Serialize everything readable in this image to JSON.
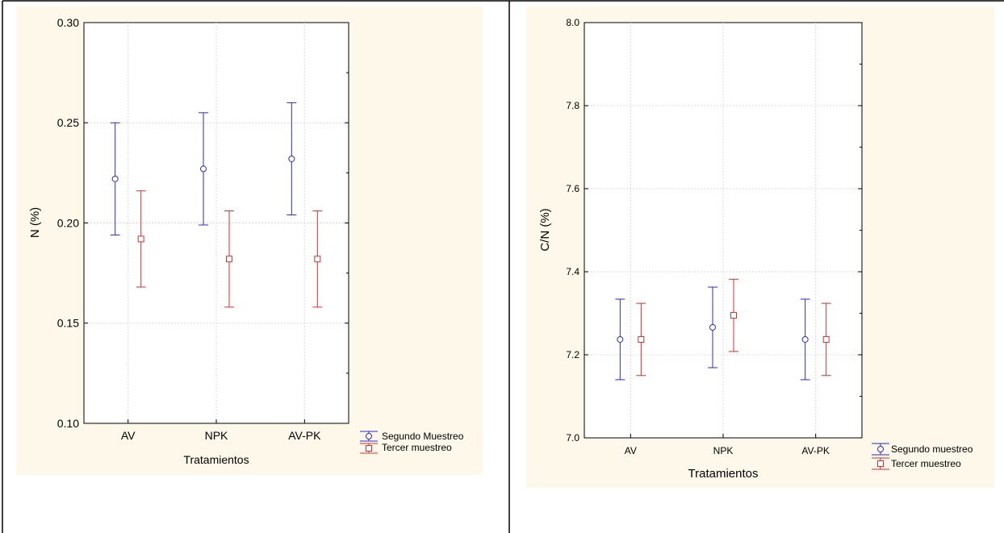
{
  "chart_data": [
    {
      "type": "scatter",
      "subtype": "error-bar",
      "xlabel": "Tratamientos",
      "ylabel": "N (%)",
      "categories": [
        "AV",
        "NPK",
        "AV-PK"
      ],
      "ylim": [
        0.1,
        0.3
      ],
      "yticks": [
        "0.10",
        "0.15",
        "0.20",
        "0.25",
        "0.30"
      ],
      "ytick_values": [
        0.1,
        0.15,
        0.2,
        0.25,
        0.3
      ],
      "grid": true,
      "legend_position": "bottom-right outside",
      "background": "#fdf8e9",
      "series": [
        {
          "name": "Segundo Muestreo",
          "color": "#2b2bd0",
          "marker": "circle",
          "mean": [
            0.222,
            0.227,
            0.232
          ],
          "lower": [
            0.194,
            0.199,
            0.204
          ],
          "upper": [
            0.25,
            0.255,
            0.26
          ]
        },
        {
          "name": "Tercer muestreo",
          "color": "#d63030",
          "marker": "square",
          "mean": [
            0.192,
            0.182,
            0.182
          ],
          "lower": [
            0.168,
            0.158,
            0.158
          ],
          "upper": [
            0.216,
            0.206,
            0.206
          ]
        }
      ]
    },
    {
      "type": "scatter",
      "subtype": "error-bar",
      "xlabel": "Tratamientos",
      "ylabel": "C/N (%)",
      "categories": [
        "AV",
        "NPK",
        "AV-PK"
      ],
      "ylim": [
        7.0,
        8.0
      ],
      "yticks": [
        "7.0",
        "7.2",
        "7.4",
        "7.6",
        "7.8",
        "8.0"
      ],
      "ytick_values": [
        7.0,
        7.2,
        7.4,
        7.6,
        7.8,
        8.0
      ],
      "grid": true,
      "legend_position": "bottom-right outside",
      "background": "#fdf8e9",
      "series": [
        {
          "name": "Segundo muestreo",
          "color": "#2b2bd0",
          "marker": "circle",
          "mean": [
            7.237,
            7.266,
            7.237
          ],
          "lower": [
            7.14,
            7.169,
            7.14
          ],
          "upper": [
            7.334,
            7.363,
            7.334
          ]
        },
        {
          "name": "Tercer muestreo",
          "color": "#d63030",
          "marker": "square",
          "mean": [
            7.237,
            7.295,
            7.237
          ],
          "lower": [
            7.15,
            7.208,
            7.15
          ],
          "upper": [
            7.324,
            7.382,
            7.324
          ]
        }
      ]
    }
  ]
}
